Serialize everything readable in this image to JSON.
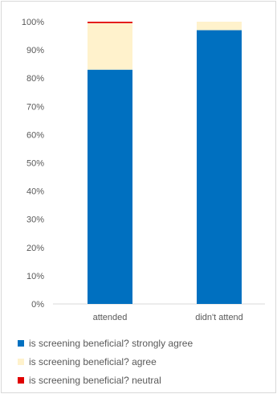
{
  "chart_data": {
    "type": "bar",
    "stacked": true,
    "normalized": true,
    "categories": [
      "attended",
      "didn't attend"
    ],
    "series": [
      {
        "name": "is screening beneficial? strongly agree",
        "color": "#0070c0",
        "values": [
          83,
          97
        ]
      },
      {
        "name": "is screening beneficial? agree",
        "color": "#fff2cc",
        "values": [
          16.5,
          3
        ]
      },
      {
        "name": "is screening beneficial? neutral",
        "color": "#e00000",
        "values": [
          0.5,
          0
        ]
      }
    ],
    "ylim": [
      0,
      100
    ],
    "yticks": [
      "0%",
      "10%",
      "20%",
      "30%",
      "40%",
      "50%",
      "60%",
      "70%",
      "80%",
      "90%",
      "100%"
    ],
    "grid": false,
    "legend_position": "bottom",
    "title": "",
    "xlabel": "",
    "ylabel": ""
  }
}
